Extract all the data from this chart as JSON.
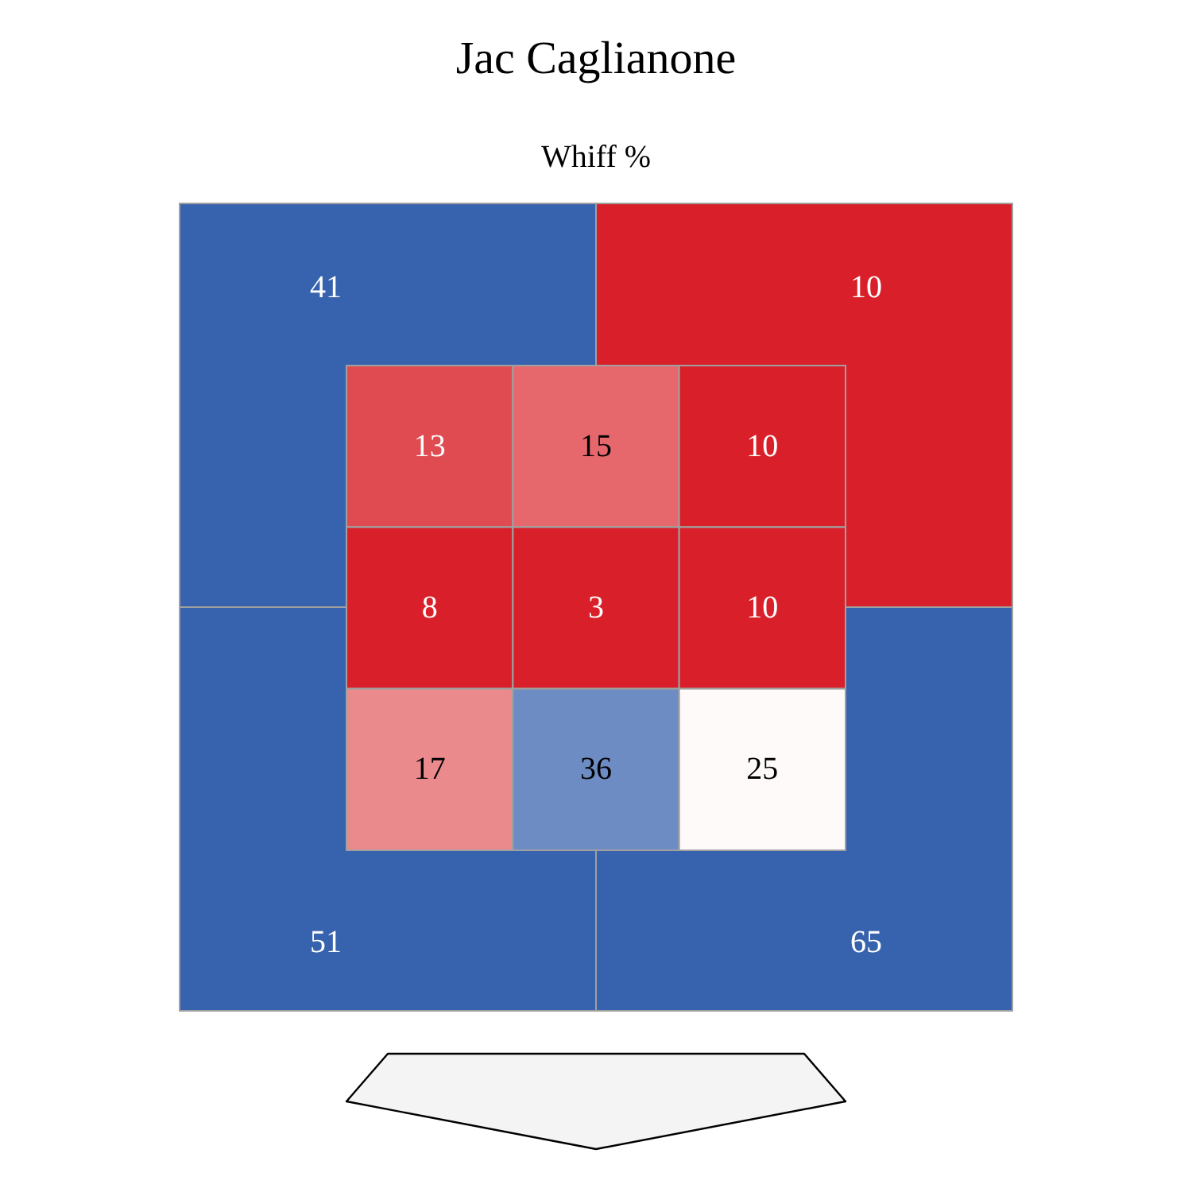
{
  "chart_data": [
    {
      "type": "heatmap",
      "title": "Jac Caglianone",
      "subtitle": "Whiff %",
      "categories": [
        null,
        null
      ],
      "y_categories": [
        null,
        null
      ],
      "cells": [
        [
          41,
          10
        ],
        [
          51,
          65
        ]
      ],
      "colors": [
        "#3762ad",
        "#d9202a",
        "#3762ad",
        "#3762ad"
      ],
      "data_labels": true
    },
    {
      "type": "heatmap",
      "categories": [
        null,
        null,
        null
      ],
      "y_categories": [
        null,
        null,
        null
      ],
      "cells": [
        [
          13,
          15,
          10
        ],
        [
          8,
          3,
          10
        ],
        [
          17,
          36,
          25
        ]
      ],
      "colors": [
        "#e04b52",
        "#e6686d",
        "#d9202a",
        "#d9202a",
        "#d9202a",
        "#d9202a",
        "#eb8a8d",
        "#6e8cc4",
        "#fefafa"
      ],
      "data_labels": true
    }
  ]
}
